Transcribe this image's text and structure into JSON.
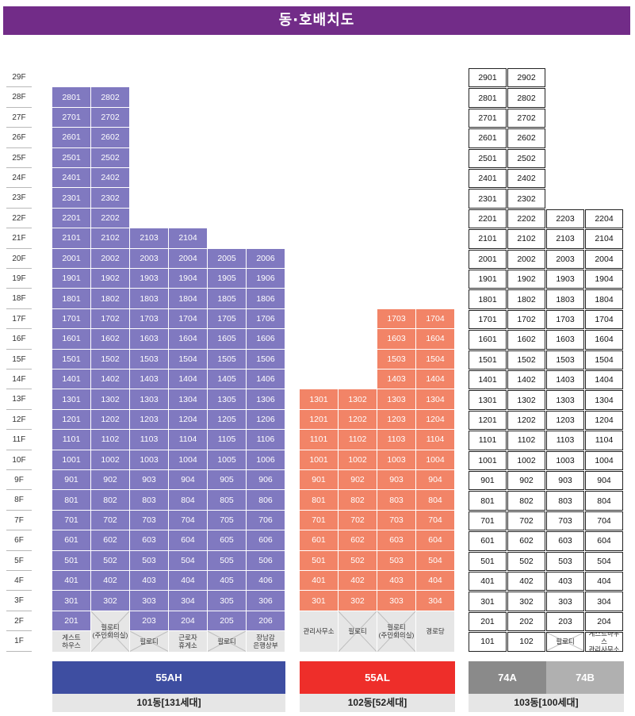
{
  "title": "동·호배치도",
  "floors": [
    "29F",
    "28F",
    "27F",
    "26F",
    "25F",
    "24F",
    "23F",
    "22F",
    "21F",
    "20F",
    "19F",
    "18F",
    "17F",
    "16F",
    "15F",
    "14F",
    "13F",
    "12F",
    "11F",
    "10F",
    "9F",
    "8F",
    "7F",
    "6F",
    "5F",
    "4F",
    "3F",
    "2F",
    "1F"
  ],
  "buildings": [
    {
      "id": "101",
      "name": "101동[131세대]",
      "types": [
        {
          "label": "55AH",
          "color": "#3e4ea1"
        }
      ],
      "unit_columns": [
        {
          "line": 1,
          "top_floor": 28,
          "ground": "게스트\n하우스"
        },
        {
          "line": 2,
          "top_floor": 28,
          "ground": "필로티\n(주민회의실)",
          "pilotis_from_floor": 2
        },
        {
          "line": 3,
          "top_floor": 21,
          "ground": "필로티"
        },
        {
          "line": 4,
          "top_floor": 21,
          "ground": "근로자\n휴게소"
        },
        {
          "line": 5,
          "top_floor": 20,
          "ground": "필로티"
        },
        {
          "line": 6,
          "top_floor": 20,
          "ground": "장남감\n은행상부"
        }
      ],
      "unit_color": "#8079c0"
    },
    {
      "id": "102",
      "name": "102동[52세대]",
      "types": [
        {
          "label": "55AL",
          "color": "#ee2e2a"
        }
      ],
      "unit_columns": [
        {
          "line": 1,
          "top_floor": 13,
          "ground": "관리사무소",
          "ground_span_2f": true
        },
        {
          "line": 2,
          "top_floor": 13,
          "ground": "필로티",
          "ground_span_2f": true
        },
        {
          "line": 3,
          "top_floor": 17,
          "ground": "필로티\n(주민회의실)",
          "ground_span_2f": true
        },
        {
          "line": 4,
          "top_floor": 17,
          "ground": "경로당",
          "ground_span_2f": true
        }
      ],
      "unit_color": "#f28467"
    },
    {
      "id": "103",
      "name": "103동[100세대]",
      "types": [
        {
          "label": "74A",
          "color": "#8a8a8a"
        },
        {
          "label": "74B",
          "color": "#b0b0b0"
        }
      ],
      "unit_columns": [
        {
          "line": 1,
          "top_floor": 29,
          "units_1f": "101"
        },
        {
          "line": 2,
          "top_floor": 29,
          "units_1f": "102"
        },
        {
          "line": 3,
          "top_floor": 22,
          "ground": "필로티"
        },
        {
          "line": 4,
          "top_floor": 22,
          "ground": "게스트하우스\n관리사무소"
        }
      ],
      "unit_color": "#ffffff"
    }
  ]
}
